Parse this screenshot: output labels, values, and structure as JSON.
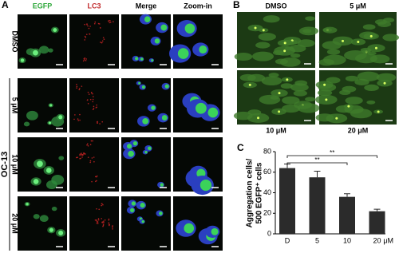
{
  "panel_a": {
    "label": "A",
    "columns": [
      "EGFP",
      "LC3",
      "Merge",
      "Zoom-in"
    ],
    "rows": [
      "DMSO",
      "5 μM",
      "10 μM",
      "20 μM"
    ],
    "group": "OC-13"
  },
  "panel_b": {
    "label": "B",
    "top": [
      "DMSO",
      "5 μM"
    ],
    "bottom": [
      "10 μM",
      "20 μM"
    ]
  },
  "chart_data": {
    "type": "bar",
    "label": "C",
    "ylabel": [
      "Aggregation cells/",
      "500 EGFP⁺ cells"
    ],
    "x_unit": "μM",
    "categories": [
      "D",
      "5",
      "10",
      "20"
    ],
    "values": [
      64,
      55,
      36,
      22
    ],
    "errors": [
      4,
      6,
      3,
      2
    ],
    "color": "#2b2b2b",
    "ylim": [
      0,
      80
    ],
    "yticks": [
      0,
      20,
      40,
      60,
      80
    ],
    "annotations": [
      "**",
      "**"
    ]
  }
}
